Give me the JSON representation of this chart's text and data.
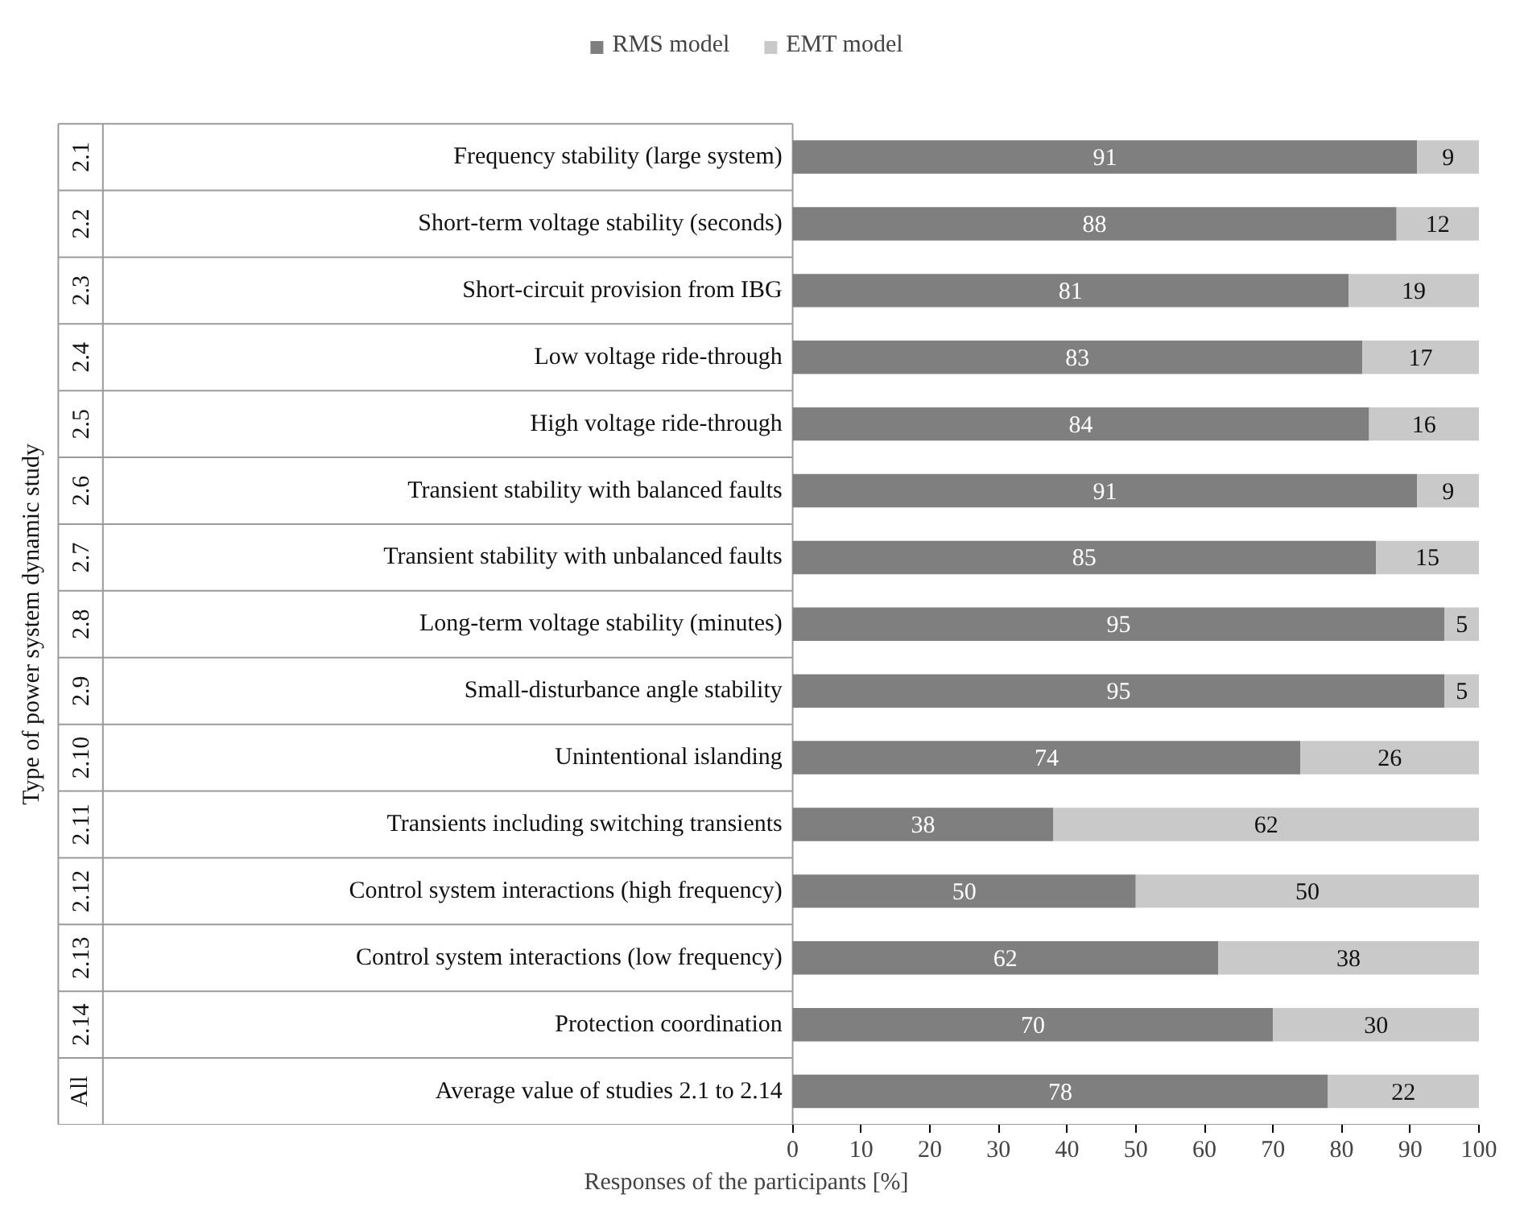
{
  "chart_data": {
    "type": "bar",
    "orientation": "horizontal",
    "stacked": true,
    "data_labels": true,
    "legend": "top",
    "xlabel": "Responses of the participants [%]",
    "annotations": [
      "Type of power system dynamic study"
    ],
    "xlim": [
      0,
      100
    ],
    "xticks": [
      0,
      10,
      20,
      30,
      40,
      50,
      60,
      70,
      80,
      90,
      100
    ],
    "categories": [
      "Frequency stability (large system)",
      "Short-term voltage stability (seconds)",
      "Short-circuit provision from IBG",
      "Low voltage ride-through",
      "High voltage ride-through",
      "Transient stability with balanced faults",
      "Transient stability with unbalanced faults",
      "Long-term voltage stability (minutes)",
      "Small-disturbance angle stability",
      "Unintentional islanding",
      "Transients including switching transients",
      "Control system interactions (high frequency)",
      "Control system interactions (low frequency)",
      "Protection coordination",
      "Average value of studies 2.1 to 2.14"
    ],
    "y2_categories": [
      "2.1",
      "2.2",
      "2.3",
      "2.4",
      "2.5",
      "2.6",
      "2.7",
      "2.8",
      "2.9",
      "2.10",
      "2.11",
      "2.12",
      "2.13",
      "2.14",
      "All"
    ],
    "series": [
      {
        "name": "RMS model",
        "color": "#7f7f7f",
        "values": [
          91,
          88,
          81,
          83,
          84,
          91,
          85,
          95,
          95,
          74,
          38,
          50,
          62,
          70,
          78
        ]
      },
      {
        "name": "EMT model",
        "color": "#c9c9c9",
        "values": [
          9,
          12,
          19,
          17,
          16,
          9,
          15,
          5,
          5,
          26,
          62,
          50,
          38,
          30,
          22
        ]
      }
    ]
  }
}
